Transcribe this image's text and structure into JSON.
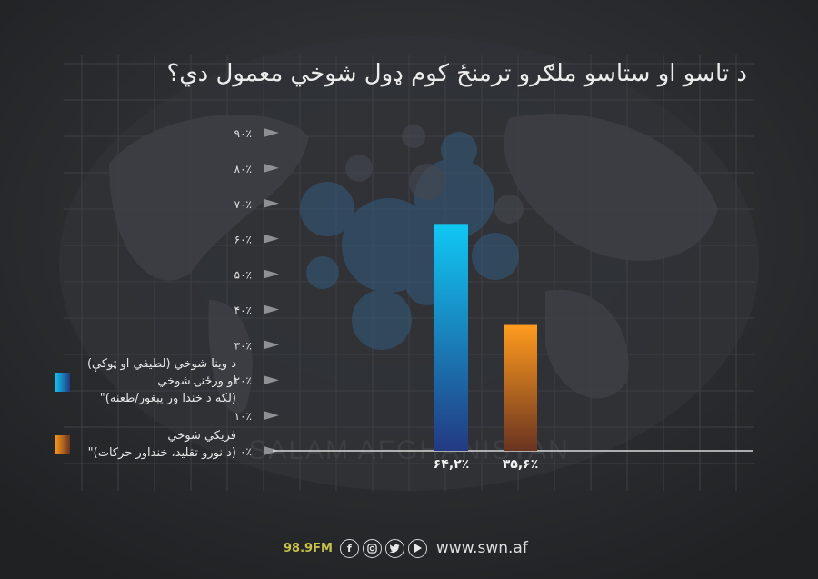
{
  "chart_data": {
    "type": "bar",
    "title": "د تاسو او ستاسو ملګرو ترمنځ کوم ډول شوخي معمول دي؟",
    "xlabel": "",
    "ylabel": "",
    "ylim": [
      0,
      90
    ],
    "yticks": [
      "۰٪",
      "۱۰٪",
      "۲۰٪",
      "۳۰٪",
      "۴۰٪",
      "۵۰٪",
      "۶۰٪",
      "۷۰٪",
      "۸۰٪",
      "۹۰٪"
    ],
    "grid": false,
    "legend_position": "left",
    "categories": [
      "۶۴,۲٪",
      "۳۵,۶٪"
    ],
    "values": [
      64.2,
      35.6
    ],
    "colors": [
      "#1e9be0",
      "#f08a1c"
    ],
    "legend": [
      {
        "lines": [
          "د وینا شوخي (لطیفي او ټوکې)",
          "او ورځنۍ شوخي",
          "(لکه د خندا ور پېغور/طعنه)\""
        ],
        "color": "#1e9be0"
      },
      {
        "lines": [
          "فزیکي شوخي",
          "(د نورو تقلید، خنداور حرکات)\""
        ],
        "color": "#f08a1c"
      }
    ]
  },
  "watermark": "SALAM AFGHANISTAN",
  "footer": {
    "frequency": "98.9FM",
    "social_icons": [
      "facebook-icon",
      "instagram-icon",
      "twitter-icon",
      "youtube-icon"
    ],
    "website": "www.swn.af"
  }
}
